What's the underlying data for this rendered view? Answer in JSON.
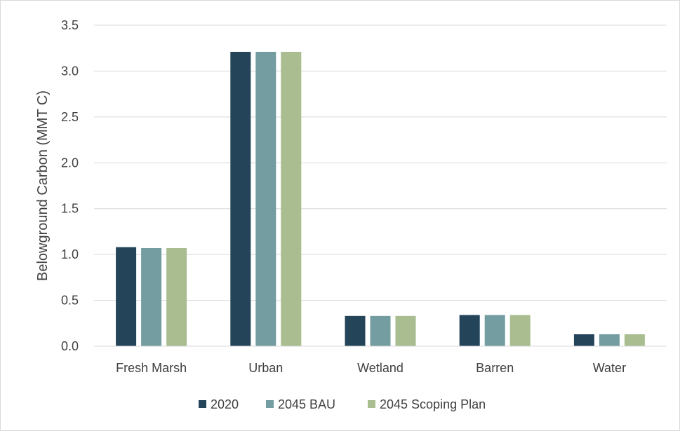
{
  "chart_data": {
    "type": "bar",
    "title": "",
    "xlabel": "",
    "ylabel": "Belowground Carbon (MMT C)",
    "categories": [
      "Fresh Marsh",
      "Urban",
      "Wetland",
      "Barren",
      "Water"
    ],
    "series": [
      {
        "name": "2020",
        "color": "#234459",
        "values": [
          1.08,
          3.21,
          0.33,
          0.34,
          0.13
        ]
      },
      {
        "name": "2045 BAU",
        "color": "#739da0",
        "values": [
          1.07,
          3.21,
          0.33,
          0.34,
          0.13
        ]
      },
      {
        "name": "2045 Scoping Plan",
        "color": "#a9bd91",
        "values": [
          1.07,
          3.21,
          0.33,
          0.34,
          0.13
        ]
      }
    ],
    "ylim": [
      0,
      3.5
    ],
    "yticks": [
      "0.0",
      "0.5",
      "1.0",
      "1.5",
      "2.0",
      "2.5",
      "3.0",
      "3.5"
    ],
    "grid": true,
    "legend_position": "bottom"
  }
}
